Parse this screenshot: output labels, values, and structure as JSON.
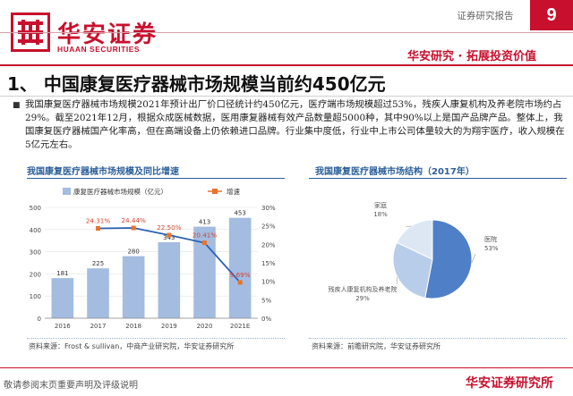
{
  "header": {
    "logo_cn": "华安证券",
    "logo_en": "HUAAN SECURITIES",
    "report_type": "证券研究报告",
    "page_number": "9",
    "slogan": "华安研究 · 拓展投资价值",
    "brand_color": "#c8102e"
  },
  "page_title": "1、 中国康复医疗器械市场规模当前约450亿元",
  "paragraph": "我国康复医疗器械市场规模2021年预计出厂价口径统计约450亿元，医疗端市场规模超过53%，残疾人康复机构及养老院市场约占29%。截至2021年12月，根据众成医械数据，医用康复器械有效产品数量超5000种，其中90%以上是国产品牌产品。整体上，我国康复医疗器械国产化率高，但在高端设备上仍依赖进口品牌。行业集中度低，行业中上市公司体量较大的为翔宇医疗，收入规模在5亿元左右。",
  "bar_chart": {
    "title": "我国康复医疗器械市场规模及同比增速",
    "source": "资料来源：Frost & sullivan，中商产业研究院，华安证券研究所"
  },
  "pie_chart": {
    "title": "我国康复医疗器械市场结构（2017年）",
    "source": "资料来源：前瞻研究院，华安证券研究所"
  },
  "chart_data": [
    {
      "type": "bar",
      "title": "我国康复医疗器械市场规模及同比增速",
      "categories": [
        "2016",
        "2017",
        "2018",
        "2019",
        "2020",
        "2021E"
      ],
      "series": [
        {
          "name": "康复医疗器械市场规模（亿元）",
          "type": "bar",
          "axis": "left",
          "color": "#a3bce0",
          "values": [
            181,
            225,
            280,
            343,
            413,
            453
          ]
        },
        {
          "name": "增速",
          "type": "line",
          "axis": "right",
          "color": "#2b62b5",
          "marker_color": "#e8742c",
          "values": [
            null,
            24.31,
            24.44,
            22.5,
            20.41,
            9.69
          ],
          "labels": [
            "",
            "24.31%",
            "24.44%",
            "22.50%",
            "20.41%",
            "9.69%"
          ]
        }
      ],
      "ylim_left": [
        0,
        500
      ],
      "yticks_left": [
        0,
        50,
        100,
        150,
        200,
        250,
        300,
        350,
        400,
        450,
        500
      ],
      "ylim_right": [
        0,
        30
      ],
      "yticks_right": [
        "0%",
        "5%",
        "10%",
        "15%",
        "20%",
        "25%",
        "30%"
      ],
      "legend": "top",
      "grid": true
    },
    {
      "type": "pie",
      "title": "我国康复医疗器械市场结构（2017年）",
      "slices": [
        {
          "label": "医院",
          "value": 53,
          "text": "53%",
          "color": "#4f7fc6"
        },
        {
          "label": "残疾人康复机构及养老院",
          "value": 29,
          "text": "29%",
          "color": "#b8cdea"
        },
        {
          "label": "家庭",
          "value": 18,
          "text": "18%",
          "color": "#dde7f4"
        }
      ]
    }
  ],
  "footer": {
    "left_text": "敬请参阅末页重要声明及评级说明",
    "right_text": "华安证券研究所"
  }
}
